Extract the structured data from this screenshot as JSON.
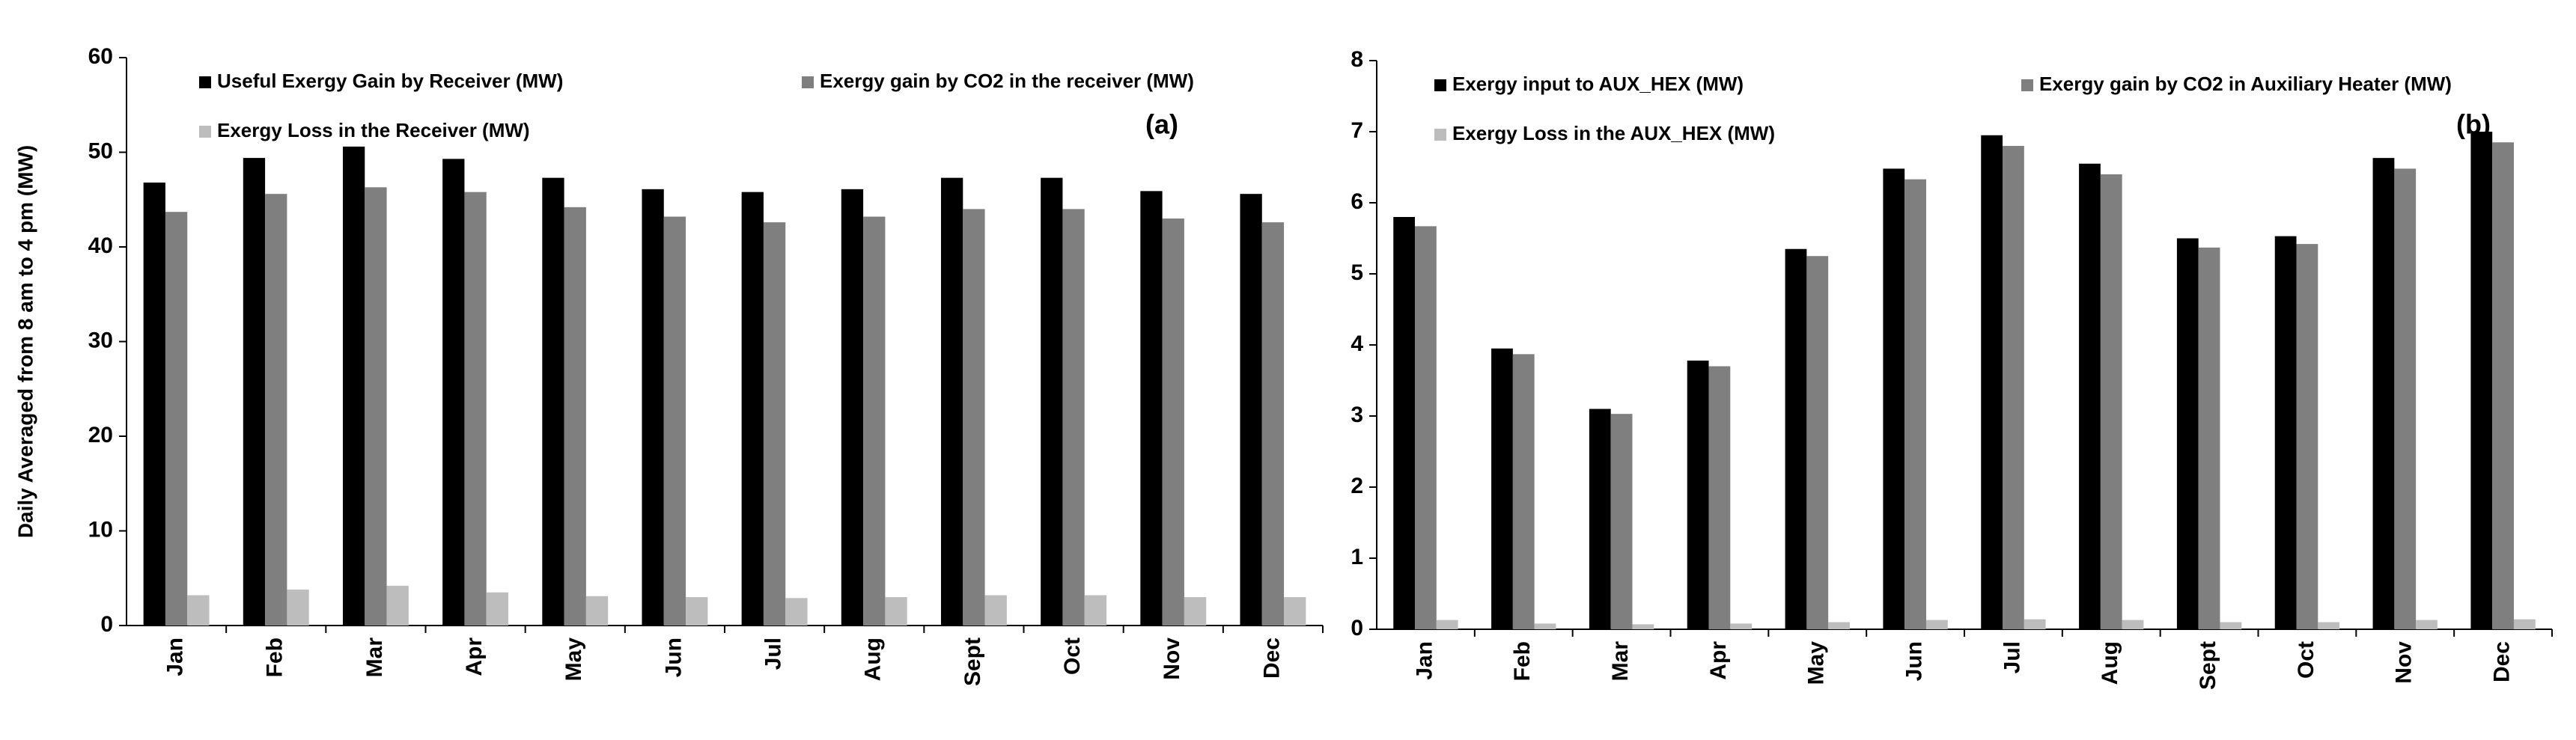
{
  "chart_data": [
    {
      "type": "bar",
      "ylabel": "Daily Averaged from 8 am to 4 pm (MW)",
      "annotation": "(a)",
      "categories": [
        "Jan",
        "Feb",
        "Mar",
        "Apr",
        "May",
        "Jun",
        "Jul",
        "Aug",
        "Sept",
        "Oct",
        "Nov",
        "Dec"
      ],
      "series": [
        {
          "name": "Useful Exergy Gain by Receiver (MW)",
          "color": "#000000",
          "values": [
            46.8,
            49.4,
            50.6,
            49.3,
            47.3,
            46.1,
            45.8,
            46.1,
            47.3,
            47.3,
            45.9,
            45.6
          ]
        },
        {
          "name": "Exergy gain by CO2 in the receiver (MW)",
          "color": "#7f7f7f",
          "values": [
            43.7,
            45.6,
            46.3,
            45.8,
            44.2,
            43.2,
            42.6,
            43.2,
            44.0,
            44.0,
            43.0,
            42.6
          ]
        },
        {
          "name": "Exergy Loss in the Receiver (MW)",
          "color": "#bdbdbd",
          "values": [
            3.2,
            3.8,
            4.2,
            3.5,
            3.1,
            3.0,
            2.9,
            3.0,
            3.2,
            3.2,
            3.0,
            3.0
          ]
        }
      ],
      "ylim": [
        0,
        60
      ],
      "yticks": [
        0,
        10,
        20,
        30,
        40,
        50,
        60
      ]
    },
    {
      "type": "bar",
      "annotation": "(b)",
      "categories": [
        "Jan",
        "Feb",
        "Mar",
        "Apr",
        "May",
        "Jun",
        "Jul",
        "Aug",
        "Sept",
        "Oct",
        "Nov",
        "Dec"
      ],
      "series": [
        {
          "name": "Exergy input to AUX_HEX (MW)",
          "color": "#000000",
          "values": [
            5.8,
            3.95,
            3.1,
            3.78,
            5.35,
            6.48,
            6.95,
            6.55,
            5.5,
            5.53,
            6.63,
            7.0
          ]
        },
        {
          "name": "Exergy gain by CO2 in Auxiliary Heater (MW)",
          "color": "#7f7f7f",
          "values": [
            5.67,
            3.87,
            3.03,
            3.7,
            5.25,
            6.33,
            6.8,
            6.4,
            5.37,
            5.42,
            6.48,
            6.85
          ]
        },
        {
          "name": "Exergy Loss in the AUX_HEX (MW)",
          "color": "#bdbdbd",
          "values": [
            0.13,
            0.08,
            0.07,
            0.08,
            0.1,
            0.13,
            0.14,
            0.13,
            0.1,
            0.1,
            0.13,
            0.14
          ]
        }
      ],
      "ylim": [
        0,
        8
      ],
      "yticks": [
        0,
        1,
        2,
        3,
        4,
        5,
        6,
        7,
        8
      ]
    }
  ]
}
